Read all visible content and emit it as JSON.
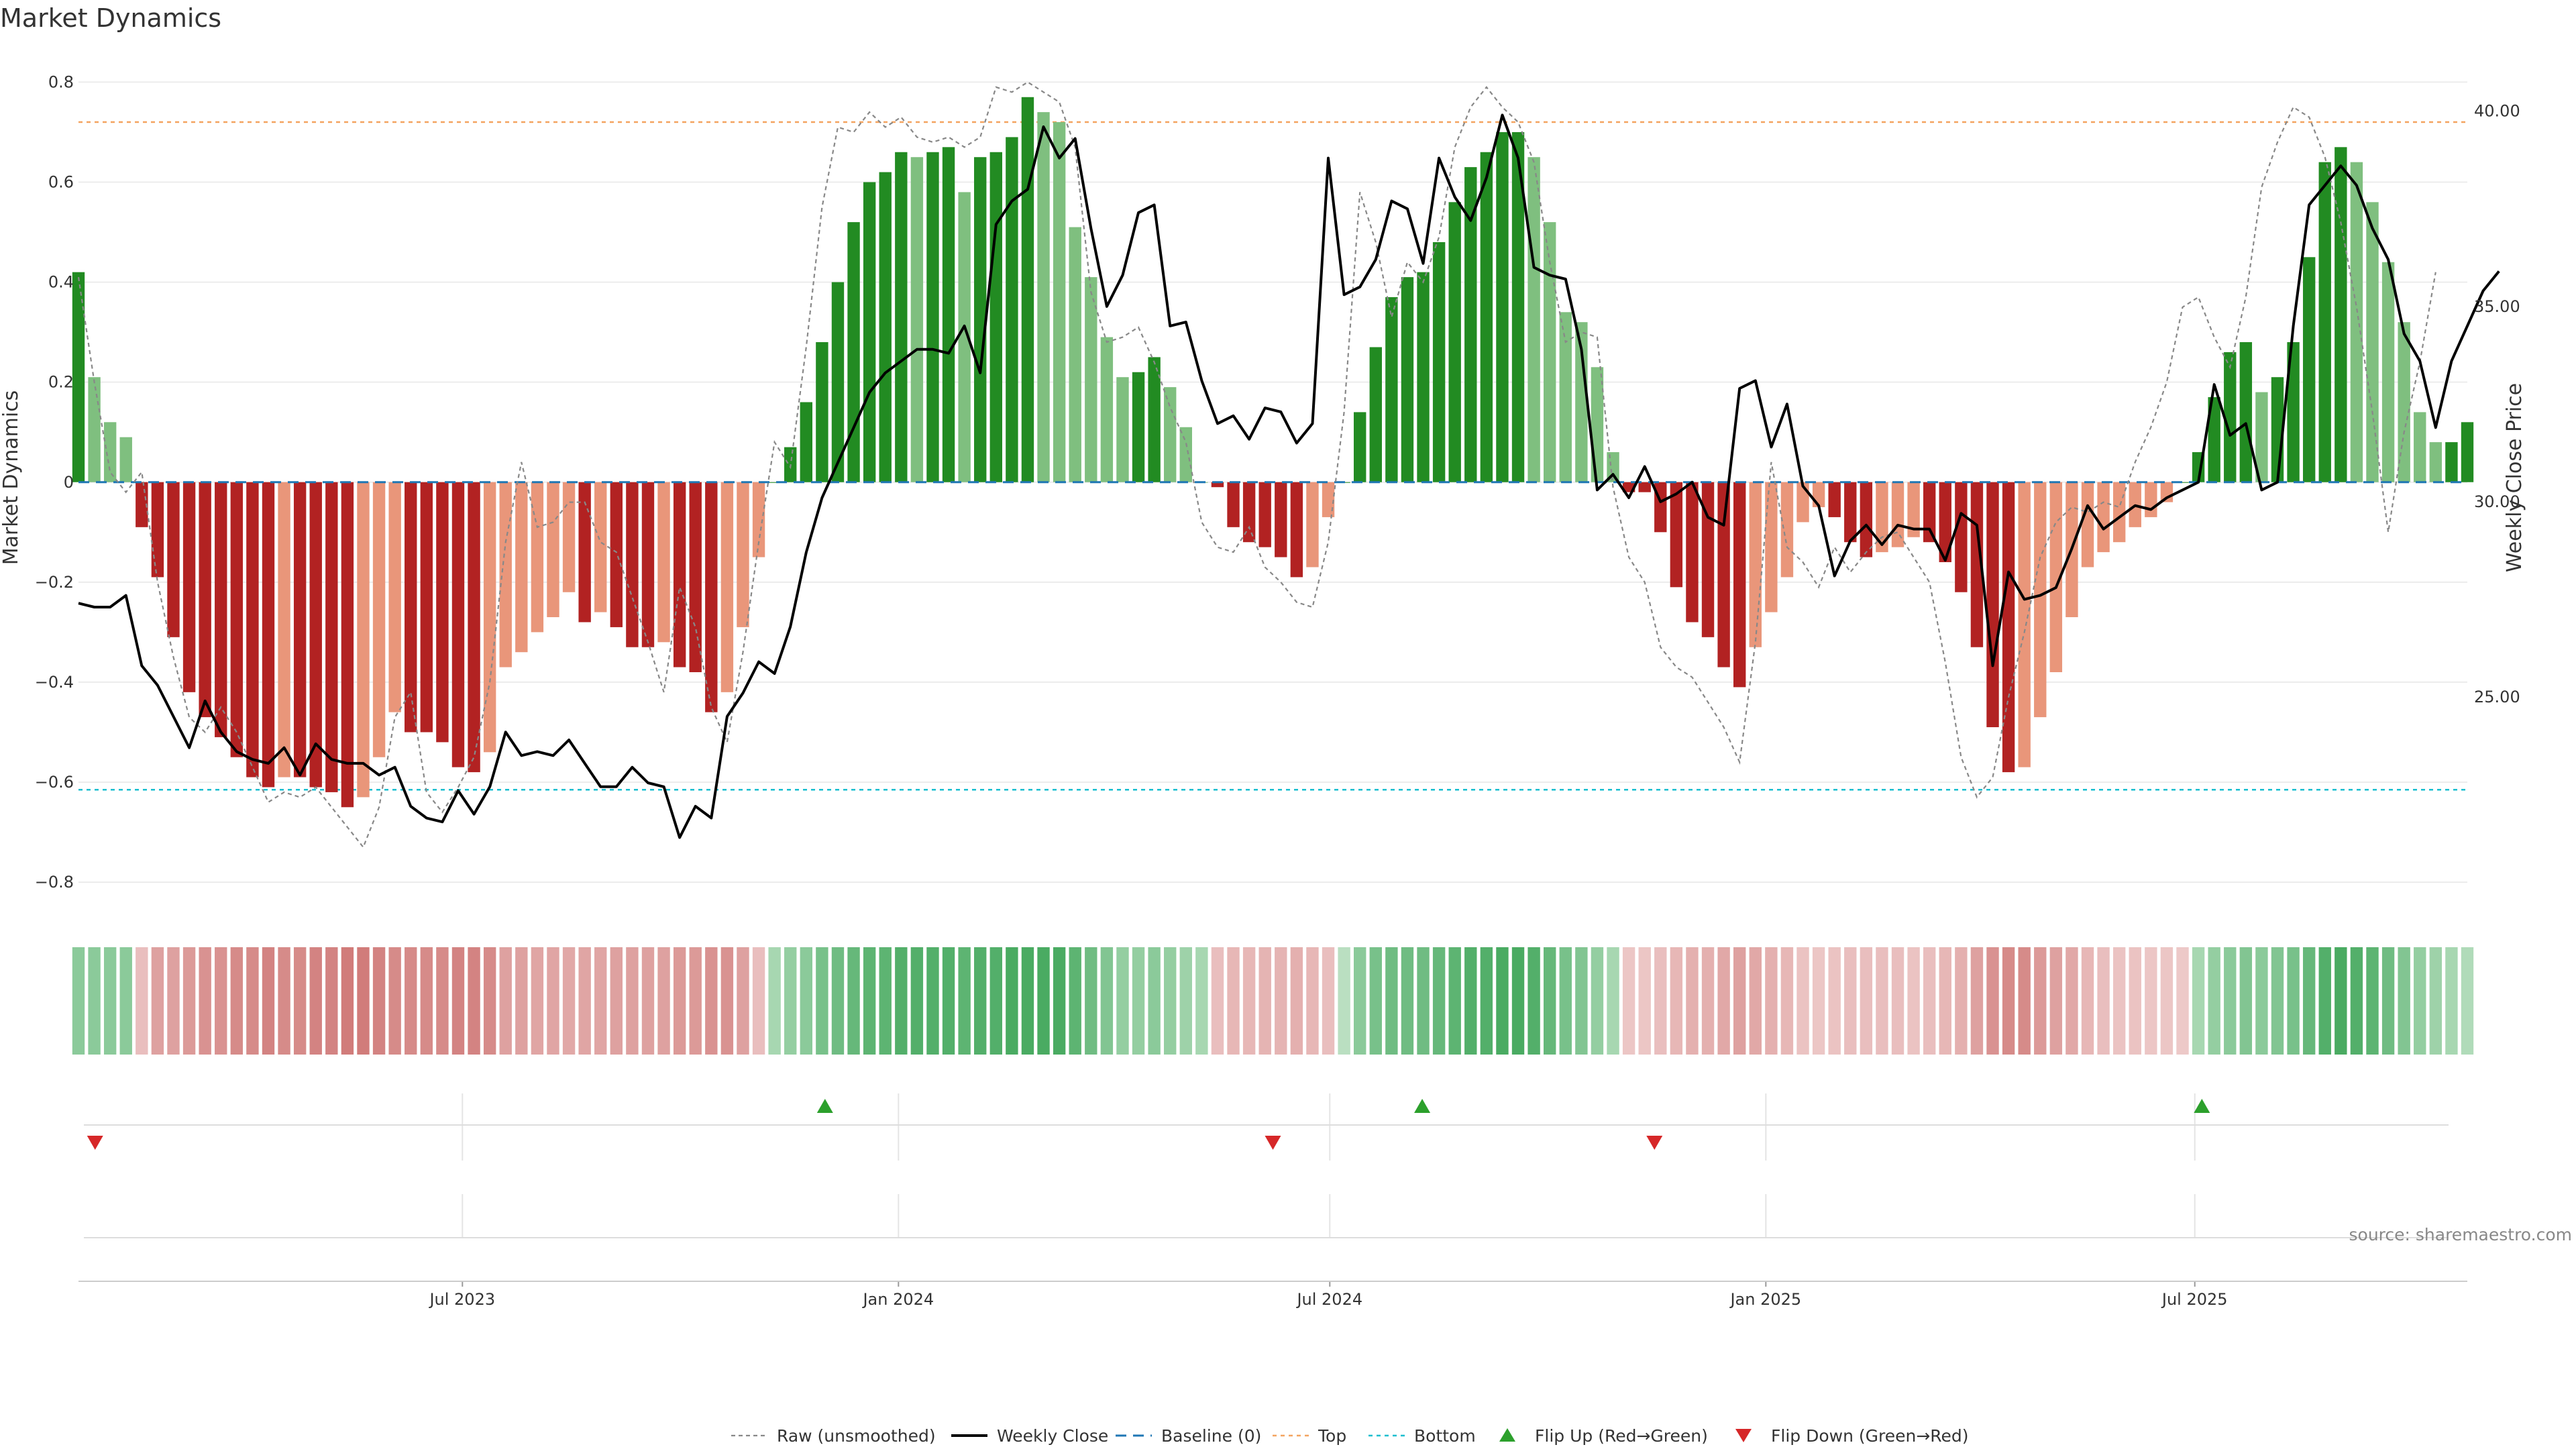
{
  "title": "Market Dynamics",
  "source": "source: sharemaestro.com",
  "colors": {
    "strong_green": "#228b22",
    "light_green": "#7fbf7f",
    "strong_red": "#b22222",
    "light_red": "#e9967a",
    "weekly_close": "#000000",
    "raw": "#888888",
    "baseline": "#1f77b4",
    "top": "#f4a460",
    "bottom": "#17becf",
    "flip_up": "#2ca02c",
    "flip_down": "#d62728"
  },
  "legend": [
    {
      "label": "Raw (unsmoothed)",
      "style": "raw"
    },
    {
      "label": "Weekly Close",
      "style": "close"
    },
    {
      "label": "Baseline (0)",
      "style": "baseline"
    },
    {
      "label": "Top",
      "style": "top"
    },
    {
      "label": "Bottom",
      "style": "bottom"
    },
    {
      "label": "Flip Up (Red→Green)",
      "style": "flip_up"
    },
    {
      "label": "Flip Down (Green→Red)",
      "style": "flip_down"
    }
  ],
  "chart_data": {
    "type": "bar",
    "title": "Market Dynamics",
    "ylabel": "Market Dynamics",
    "y2label": "Weekly Close Price",
    "ylim": [
      -0.82,
      0.82
    ],
    "y2lim": [
      20.0,
      41.0
    ],
    "yticks": [
      "0.8",
      "0.6",
      "0.4",
      "0.2",
      "0",
      "−0.2",
      "−0.4",
      "−0.6",
      "−0.8"
    ],
    "y2ticks": [
      "40.00",
      "35.00",
      "30.00",
      "25.00"
    ],
    "xticks": [
      "Jul 2023",
      "Jan 2024",
      "Jul 2024",
      "Jan 2025",
      "Jul 2025"
    ],
    "start_date": "2023-01-20",
    "end_date": "2025-10-24",
    "top_threshold": 0.72,
    "bottom_threshold": -0.615,
    "grid": true,
    "legend_position": "bottom",
    "flip_up_dates": [
      "2023-12-01",
      "2024-08-09",
      "2025-07-04"
    ],
    "flip_down_dates": [
      "2023-01-27",
      "2024-06-07",
      "2024-11-15"
    ],
    "market_dynamics": [
      0.42,
      0.21,
      0.12,
      0.09,
      -0.09,
      -0.19,
      -0.31,
      -0.42,
      -0.47,
      -0.51,
      -0.55,
      -0.59,
      -0.61,
      -0.59,
      -0.59,
      -0.61,
      -0.62,
      -0.65,
      -0.63,
      -0.55,
      -0.46,
      -0.5,
      -0.5,
      -0.52,
      -0.57,
      -0.58,
      -0.54,
      -0.37,
      -0.34,
      -0.3,
      -0.27,
      -0.22,
      -0.28,
      -0.26,
      -0.29,
      -0.33,
      -0.33,
      -0.32,
      -0.37,
      -0.38,
      -0.46,
      -0.42,
      -0.29,
      -0.15,
      0.0,
      0.07,
      0.16,
      0.28,
      0.4,
      0.52,
      0.6,
      0.62,
      0.66,
      0.65,
      0.66,
      0.67,
      0.58,
      0.65,
      0.66,
      0.69,
      0.77,
      0.74,
      0.72,
      0.51,
      0.41,
      0.29,
      0.21,
      0.22,
      0.25,
      0.19,
      0.11,
      0.0,
      -0.01,
      -0.09,
      -0.12,
      -0.13,
      -0.15,
      -0.19,
      -0.17,
      -0.07,
      0.0,
      0.14,
      0.27,
      0.37,
      0.41,
      0.42,
      0.48,
      0.56,
      0.63,
      0.66,
      0.7,
      0.7,
      0.65,
      0.52,
      0.34,
      0.32,
      0.23,
      0.06,
      -0.02,
      -0.02,
      -0.1,
      -0.21,
      -0.28,
      -0.31,
      -0.37,
      -0.41,
      -0.33,
      -0.26,
      -0.19,
      -0.08,
      -0.05,
      -0.07,
      -0.12,
      -0.15,
      -0.14,
      -0.13,
      -0.11,
      -0.12,
      -0.16,
      -0.22,
      -0.33,
      -0.49,
      -0.58,
      -0.57,
      -0.47,
      -0.38,
      -0.27,
      -0.17,
      -0.14,
      -0.12,
      -0.09,
      -0.07,
      -0.04,
      0.0,
      0.06,
      0.17,
      0.26,
      0.28,
      0.18,
      0.21,
      0.28,
      0.45,
      0.64,
      0.67,
      0.64,
      0.56,
      0.44,
      0.32,
      0.14,
      0.08,
      0.08,
      0.12
    ],
    "raw_unsmoothed": [
      0.41,
      0.2,
      0.02,
      -0.02,
      0.02,
      -0.2,
      -0.35,
      -0.47,
      -0.5,
      -0.45,
      -0.5,
      -0.57,
      -0.64,
      -0.62,
      -0.63,
      -0.61,
      -0.65,
      -0.69,
      -0.73,
      -0.65,
      -0.47,
      -0.42,
      -0.62,
      -0.66,
      -0.61,
      -0.55,
      -0.4,
      -0.12,
      0.04,
      -0.09,
      -0.08,
      -0.04,
      -0.04,
      -0.12,
      -0.14,
      -0.23,
      -0.32,
      -0.42,
      -0.21,
      -0.29,
      -0.45,
      -0.52,
      -0.34,
      -0.12,
      0.08,
      0.03,
      0.27,
      0.55,
      0.71,
      0.7,
      0.74,
      0.71,
      0.73,
      0.69,
      0.68,
      0.69,
      0.67,
      0.69,
      0.79,
      0.78,
      0.8,
      0.78,
      0.76,
      0.67,
      0.38,
      0.28,
      0.29,
      0.31,
      0.24,
      0.15,
      0.08,
      -0.08,
      -0.13,
      -0.14,
      -0.09,
      -0.17,
      -0.2,
      -0.24,
      -0.25,
      -0.12,
      0.14,
      0.58,
      0.48,
      0.33,
      0.44,
      0.4,
      0.49,
      0.67,
      0.75,
      0.79,
      0.75,
      0.72,
      0.64,
      0.44,
      0.28,
      0.3,
      0.29,
      -0.01,
      -0.15,
      -0.2,
      -0.33,
      -0.37,
      -0.39,
      -0.44,
      -0.49,
      -0.56,
      -0.32,
      0.04,
      -0.13,
      -0.16,
      -0.21,
      -0.13,
      -0.18,
      -0.14,
      -0.11,
      -0.1,
      -0.15,
      -0.2,
      -0.36,
      -0.55,
      -0.63,
      -0.59,
      -0.43,
      -0.3,
      -0.15,
      -0.08,
      -0.05,
      -0.06,
      -0.04,
      -0.05,
      0.04,
      0.11,
      0.2,
      0.35,
      0.37,
      0.29,
      0.23,
      0.37,
      0.59,
      0.68,
      0.75,
      0.73,
      0.65,
      0.52,
      0.35,
      0.14,
      -0.1,
      0.1,
      0.24,
      0.42
    ],
    "weekly_close": [
      27.4,
      27.3,
      27.3,
      27.6,
      25.8,
      25.3,
      24.5,
      23.7,
      24.9,
      24.1,
      23.6,
      23.4,
      23.3,
      23.7,
      23.0,
      23.8,
      23.4,
      23.3,
      23.3,
      23.0,
      23.2,
      22.2,
      21.9,
      21.8,
      22.6,
      22.0,
      22.7,
      24.1,
      23.5,
      23.6,
      23.5,
      23.9,
      23.3,
      22.7,
      22.7,
      23.2,
      22.8,
      22.7,
      21.4,
      22.2,
      21.9,
      24.5,
      25.1,
      25.9,
      25.6,
      26.8,
      28.7,
      30.1,
      31.0,
      31.9,
      32.8,
      33.3,
      33.6,
      33.9,
      33.9,
      33.8,
      34.5,
      33.3,
      37.1,
      37.7,
      38.0,
      39.6,
      38.8,
      39.3,
      37.0,
      35.0,
      35.8,
      37.4,
      37.6,
      34.5,
      34.6,
      33.1,
      32.0,
      32.2,
      31.6,
      32.4,
      32.3,
      31.5,
      32.0,
      38.8,
      35.3,
      35.5,
      36.2,
      37.7,
      37.5,
      36.1,
      38.8,
      37.8,
      37.2,
      38.3,
      39.9,
      38.8,
      36.0,
      35.8,
      35.7,
      33.9,
      30.3,
      30.7,
      30.1,
      30.9,
      30.0,
      30.2,
      30.5,
      29.6,
      29.4,
      32.9,
      33.1,
      31.4,
      32.5,
      30.4,
      29.9,
      28.1,
      29.0,
      29.4,
      28.9,
      29.4,
      29.3,
      29.3,
      28.5,
      29.7,
      29.4,
      25.8,
      28.2,
      27.5,
      27.6,
      27.8,
      28.8,
      29.9,
      29.3,
      29.6,
      29.9,
      29.8,
      30.1,
      30.3,
      30.5,
      33.0,
      31.7,
      32.0,
      30.3,
      30.5,
      34.5,
      37.6,
      38.1,
      38.6,
      38.1,
      37.0,
      36.2,
      34.3,
      33.6,
      31.9,
      33.6,
      34.5,
      35.4,
      35.9
    ],
    "regime_intensity": [
      0.5,
      0.5,
      0.5,
      0.5,
      -0.25,
      -0.45,
      -0.45,
      -0.5,
      -0.55,
      -0.55,
      -0.6,
      -0.6,
      -0.65,
      -0.6,
      -0.6,
      -0.65,
      -0.65,
      -0.7,
      -0.7,
      -0.65,
      -0.6,
      -0.6,
      -0.6,
      -0.6,
      -0.65,
      -0.65,
      -0.6,
      -0.45,
      -0.45,
      -0.42,
      -0.42,
      -0.4,
      -0.42,
      -0.42,
      -0.45,
      -0.45,
      -0.45,
      -0.45,
      -0.5,
      -0.5,
      -0.55,
      -0.55,
      -0.45,
      -0.25,
      0.35,
      0.45,
      0.5,
      0.6,
      0.65,
      0.7,
      0.75,
      0.75,
      0.8,
      0.8,
      0.8,
      0.8,
      0.75,
      0.8,
      0.8,
      0.85,
      0.85,
      0.85,
      0.85,
      0.75,
      0.65,
      0.55,
      0.45,
      0.45,
      0.5,
      0.45,
      0.4,
      0.35,
      -0.25,
      -0.3,
      -0.3,
      -0.32,
      -0.32,
      -0.35,
      -0.3,
      -0.25,
      0.25,
      0.5,
      0.6,
      0.65,
      0.65,
      0.65,
      0.7,
      0.75,
      0.8,
      0.8,
      0.85,
      0.85,
      0.8,
      0.7,
      0.6,
      0.55,
      0.45,
      0.35,
      -0.2,
      -0.2,
      -0.25,
      -0.3,
      -0.35,
      -0.35,
      -0.4,
      -0.45,
      -0.4,
      -0.35,
      -0.3,
      -0.22,
      -0.2,
      -0.22,
      -0.25,
      -0.25,
      -0.25,
      -0.25,
      -0.22,
      -0.25,
      -0.3,
      -0.35,
      -0.45,
      -0.55,
      -0.6,
      -0.6,
      -0.5,
      -0.45,
      -0.4,
      -0.3,
      -0.25,
      -0.22,
      -0.22,
      -0.2,
      -0.2,
      -0.18,
      0.35,
      0.45,
      0.5,
      0.55,
      0.5,
      0.55,
      0.6,
      0.7,
      0.8,
      0.85,
      0.8,
      0.75,
      0.65,
      0.55,
      0.45,
      0.4,
      0.35,
      0.3
    ]
  }
}
